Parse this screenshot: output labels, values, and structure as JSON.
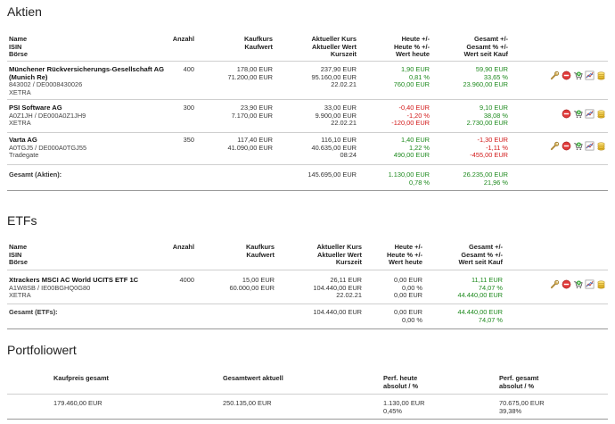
{
  "stocks": {
    "title": "Aktien",
    "headers": {
      "name": [
        "Name",
        "ISIN",
        "Börse"
      ],
      "anzahl": "Anzahl",
      "kauf": [
        "Kaufkurs",
        "Kaufwert"
      ],
      "aktuell": [
        "Aktueller Kurs",
        "Aktueller Wert",
        "Kurszeit"
      ],
      "heute": [
        "Heute +/-",
        "Heute % +/-",
        "Wert heute"
      ],
      "gesamt": [
        "Gesamt +/-",
        "Gesamt % +/-",
        "Wert seit Kauf"
      ]
    },
    "rows": [
      {
        "name": "Münchener Rückversicherungs-Gesellschaft AG (Munich Re)",
        "name_line1": "Münchener Rückversicherungs-Gesellschaft AG",
        "name_line2": "(Munich Re)",
        "isin": "843002 / DE0008430026",
        "exchange": "XETRA",
        "anzahl": "400",
        "kaufkurs": "178,00 EUR",
        "kaufwert": "71.200,00 EUR",
        "kurs": "237,90 EUR",
        "wert": "95.160,00 EUR",
        "zeit": "22.02.21",
        "heute_abs": "1,90 EUR",
        "heute_pct": "0,81 %",
        "heute_wert": "760,00 EUR",
        "heute_color": "green",
        "gesamt_abs": "59,90 EUR",
        "gesamt_pct": "33,65 %",
        "gesamt_wert": "23.960,00 EUR",
        "gesamt_color": "green",
        "icons": [
          "wrench-icon",
          "remove-icon",
          "add-cart-icon",
          "chart-icon",
          "coins-icon"
        ]
      },
      {
        "name": "PSI Software AG",
        "name_line1": "PSI Software AG",
        "name_line2": "",
        "isin": "A0Z1JH / DE000A0Z1JH9",
        "exchange": "XETRA",
        "anzahl": "300",
        "kaufkurs": "23,90 EUR",
        "kaufwert": "7.170,00 EUR",
        "kurs": "33,00 EUR",
        "wert": "9.900,00 EUR",
        "zeit": "22.02.21",
        "heute_abs": "-0,40 EUR",
        "heute_pct": "-1,20 %",
        "heute_wert": "-120,00 EUR",
        "heute_color": "red",
        "gesamt_abs": "9,10 EUR",
        "gesamt_pct": "38,08 %",
        "gesamt_wert": "2.730,00 EUR",
        "gesamt_color": "green",
        "icons": [
          "remove-icon",
          "add-cart-icon",
          "chart-icon",
          "coins-icon"
        ]
      },
      {
        "name": "Varta AG",
        "name_line1": "Varta AG",
        "name_line2": "",
        "isin": "A0TGJ5 / DE000A0TGJ55",
        "exchange": "Tradegate",
        "anzahl": "350",
        "kaufkurs": "117,40 EUR",
        "kaufwert": "41.090,00 EUR",
        "kurs": "116,10 EUR",
        "wert": "40.635,00 EUR",
        "zeit": "08:24",
        "heute_abs": "1,40 EUR",
        "heute_pct": "1,22 %",
        "heute_wert": "490,00 EUR",
        "heute_color": "green",
        "gesamt_abs": "-1,30 EUR",
        "gesamt_pct": "-1,11 %",
        "gesamt_wert": "-455,00 EUR",
        "gesamt_color": "red",
        "icons": [
          "wrench-icon",
          "remove-icon",
          "add-cart-icon",
          "chart-icon",
          "coins-icon"
        ]
      }
    ],
    "total": {
      "label": "Gesamt (Aktien):",
      "wert": "145.695,00 EUR",
      "heute_abs": "1.130,00 EUR",
      "heute_pct": "0,78 %",
      "gesamt_abs": "26.235,00 EUR",
      "gesamt_pct": "21,96 %"
    }
  },
  "etfs": {
    "title": "ETFs",
    "rows": [
      {
        "name": "Xtrackers MSCI AC World UCITS ETF 1C",
        "isin": "A1W8SB / IE00BGHQ0G80",
        "exchange": "XETRA",
        "anzahl": "4000",
        "kaufkurs": "15,00 EUR",
        "kaufwert": "60.000,00 EUR",
        "kurs": "26,11 EUR",
        "wert": "104.440,00 EUR",
        "zeit": "22.02.21",
        "heute_abs": "0,00 EUR",
        "heute_pct": "0,00 %",
        "heute_wert": "0,00 EUR",
        "gesamt_abs": "11,11 EUR",
        "gesamt_pct": "74,07 %",
        "gesamt_wert": "44.440,00 EUR",
        "icons": [
          "wrench-icon",
          "remove-icon",
          "add-cart-icon",
          "chart-icon",
          "coins-icon"
        ]
      }
    ],
    "total": {
      "label": "Gesamt (ETFs):",
      "wert": "104.440,00 EUR",
      "heute_abs": "0,00 EUR",
      "heute_pct": "0,00 %",
      "gesamt_abs": "44.440,00 EUR",
      "gesamt_pct": "74,07 %"
    }
  },
  "portfolio": {
    "title": "Portfoliowert",
    "headers": {
      "kaufpreis": "Kaufpreis gesamt",
      "gesamtwert": "Gesamtwert aktuell",
      "perf_heute": [
        "Perf. heute",
        "absolut / %"
      ],
      "perf_gesamt": [
        "Perf. gesamt",
        "absolut / %"
      ]
    },
    "values": {
      "kaufpreis": "179.460,00 EUR",
      "gesamtwert": "250.135,00 EUR",
      "perf_heute_abs": "1.130,00 EUR",
      "perf_heute_pct": "0,45%",
      "perf_gesamt_abs": "70.675,00 EUR",
      "perf_gesamt_pct": "39,38%"
    }
  },
  "colors": {
    "positive": "#1e8a1e",
    "negative": "#d21919",
    "divider": "#cfcfcf"
  }
}
